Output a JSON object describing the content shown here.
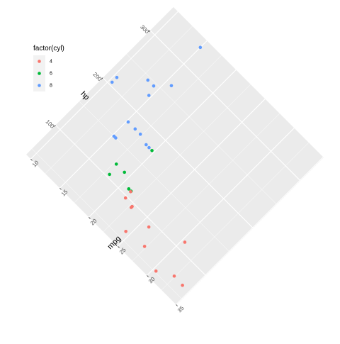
{
  "chart_data": {
    "type": "scatter",
    "title": "",
    "xlabel": "mpg",
    "ylabel": "hp",
    "legend": {
      "title": "factor(cyl)",
      "position": "top-left",
      "entries": [
        {
          "label": "4",
          "color": "#F8766D"
        },
        {
          "label": "6",
          "color": "#00BA38"
        },
        {
          "label": "8",
          "color": "#619CFF"
        }
      ]
    },
    "x_ticks": [
      {
        "value": 10,
        "label": "10"
      },
      {
        "value": 15,
        "label": "15"
      },
      {
        "value": 20,
        "label": "20"
      },
      {
        "value": 25,
        "label": "25"
      },
      {
        "value": 30,
        "label": "30"
      },
      {
        "value": 35,
        "label": "35"
      }
    ],
    "y_ticks": [
      {
        "value": 100,
        "label": "100"
      },
      {
        "value": 200,
        "label": "200"
      },
      {
        "value": 300,
        "label": "300"
      }
    ],
    "xlim": [
      10.4,
      33.9
    ],
    "ylim": [
      52,
      335
    ],
    "rotation_deg": 45,
    "grid": true,
    "panel_background": "#EBEBEB",
    "points": [
      {
        "mpg": 21.0,
        "hp": 110,
        "cyl": "6"
      },
      {
        "mpg": 21.0,
        "hp": 110,
        "cyl": "6"
      },
      {
        "mpg": 22.8,
        "hp": 93,
        "cyl": "4"
      },
      {
        "mpg": 21.4,
        "hp": 110,
        "cyl": "6"
      },
      {
        "mpg": 18.7,
        "hp": 175,
        "cyl": "8"
      },
      {
        "mpg": 18.1,
        "hp": 105,
        "cyl": "6"
      },
      {
        "mpg": 14.3,
        "hp": 245,
        "cyl": "8"
      },
      {
        "mpg": 24.4,
        "hp": 62,
        "cyl": "4"
      },
      {
        "mpg": 22.8,
        "hp": 95,
        "cyl": "4"
      },
      {
        "mpg": 19.2,
        "hp": 123,
        "cyl": "6"
      },
      {
        "mpg": 17.8,
        "hp": 123,
        "cyl": "6"
      },
      {
        "mpg": 16.4,
        "hp": 180,
        "cyl": "8"
      },
      {
        "mpg": 17.3,
        "hp": 180,
        "cyl": "8"
      },
      {
        "mpg": 15.2,
        "hp": 180,
        "cyl": "8"
      },
      {
        "mpg": 10.4,
        "hp": 205,
        "cyl": "8"
      },
      {
        "mpg": 10.4,
        "hp": 215,
        "cyl": "8"
      },
      {
        "mpg": 14.7,
        "hp": 230,
        "cyl": "8"
      },
      {
        "mpg": 32.4,
        "hp": 66,
        "cyl": "4"
      },
      {
        "mpg": 30.4,
        "hp": 52,
        "cyl": "4"
      },
      {
        "mpg": 33.9,
        "hp": 65,
        "cyl": "4"
      },
      {
        "mpg": 21.5,
        "hp": 97,
        "cyl": "4"
      },
      {
        "mpg": 15.5,
        "hp": 150,
        "cyl": "8"
      },
      {
        "mpg": 15.2,
        "hp": 150,
        "cyl": "8"
      },
      {
        "mpg": 13.3,
        "hp": 245,
        "cyl": "8"
      },
      {
        "mpg": 19.2,
        "hp": 175,
        "cyl": "8"
      },
      {
        "mpg": 27.3,
        "hp": 66,
        "cyl": "4"
      },
      {
        "mpg": 26.0,
        "hp": 91,
        "cyl": "4"
      },
      {
        "mpg": 30.4,
        "hp": 113,
        "cyl": "4"
      },
      {
        "mpg": 15.8,
        "hp": 264,
        "cyl": "8"
      },
      {
        "mpg": 19.7,
        "hp": 175,
        "cyl": "6"
      },
      {
        "mpg": 15.0,
        "hp": 335,
        "cyl": "8"
      },
      {
        "mpg": 21.4,
        "hp": 109,
        "cyl": "4"
      }
    ]
  }
}
